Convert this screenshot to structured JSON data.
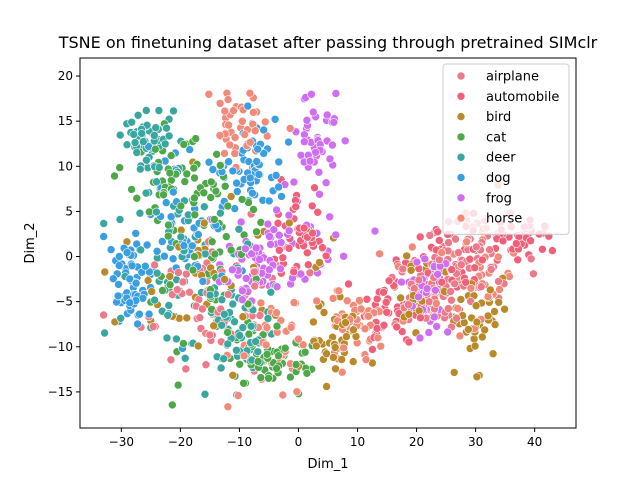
{
  "chart_data": {
    "type": "scatter",
    "title": "TSNE on finetuning dataset after passing through pretrained SIMclr",
    "xlabel": "Dim_1",
    "ylabel": "Dim_2",
    "xlim": [
      -37,
      47
    ],
    "ylim": [
      -19,
      22
    ],
    "xticks": [
      -30,
      -20,
      -10,
      0,
      10,
      20,
      30,
      40
    ],
    "yticks": [
      -15,
      -10,
      -5,
      0,
      5,
      10,
      15,
      20
    ],
    "grid": false,
    "legend_position": "top-right",
    "point_count_per_series": 180,
    "series": [
      {
        "name": "airplane",
        "color": "#ed7a8a",
        "clusters": [
          [
            22,
            -4,
            4,
            3
          ],
          [
            30,
            0,
            7,
            4
          ],
          [
            -14,
            -6,
            10,
            6
          ]
        ]
      },
      {
        "name": "automobile",
        "color": "#f0607a",
        "clusters": [
          [
            25,
            0,
            7,
            4
          ],
          [
            37,
            2,
            4,
            2
          ],
          [
            15,
            -6,
            4,
            3
          ],
          [
            0,
            2,
            4,
            4
          ]
        ]
      },
      {
        "name": "bird",
        "color": "#b88a2a",
        "clusters": [
          [
            30,
            -7,
            5,
            4
          ],
          [
            6,
            -9,
            4,
            4
          ],
          [
            20,
            -4,
            3,
            3
          ],
          [
            -15,
            -2,
            12,
            7
          ]
        ]
      },
      {
        "name": "cat",
        "color": "#4ea84a",
        "clusters": [
          [
            -15,
            -2,
            9,
            8
          ],
          [
            -5,
            -12,
            6,
            3
          ],
          [
            -20,
            8,
            8,
            4
          ]
        ]
      },
      {
        "name": "deer",
        "color": "#3aa6a0",
        "clusters": [
          [
            -20,
            0,
            9,
            8
          ],
          [
            -25,
            13,
            4,
            3
          ],
          [
            -10,
            -8,
            6,
            5
          ]
        ]
      },
      {
        "name": "dog",
        "color": "#3a9ee0",
        "clusters": [
          [
            -28,
            -3,
            3,
            4
          ],
          [
            -20,
            2,
            8,
            6
          ],
          [
            -8,
            10,
            5,
            5
          ]
        ]
      },
      {
        "name": "frog",
        "color": "#cf6ef0",
        "clusters": [
          [
            3,
            13,
            3,
            4
          ],
          [
            -2,
            2,
            7,
            4
          ],
          [
            22,
            -4,
            3,
            3
          ],
          [
            -8,
            -2,
            4,
            3
          ]
        ]
      },
      {
        "name": "horse",
        "color": "#f28a7a",
        "clusters": [
          [
            -5,
            -10,
            7,
            6
          ],
          [
            10,
            -8,
            5,
            4
          ],
          [
            -10,
            14,
            4,
            4
          ],
          [
            28,
            -2,
            8,
            5
          ]
        ]
      }
    ]
  }
}
